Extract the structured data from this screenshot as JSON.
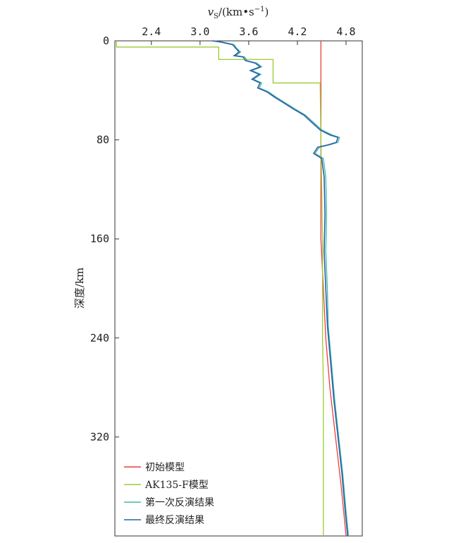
{
  "chart_data": {
    "type": "line",
    "title": "",
    "xlabel_var": "v",
    "xlabel_sub": "S",
    "xlabel_unit": "/(km•s",
    "xlabel_sup": "−1",
    "xlabel_close": ")",
    "ylabel": "深度/km",
    "xlim": [
      1.95,
      5.0
    ],
    "ylim": [
      0,
      400
    ],
    "y_inverted": true,
    "x_ticks": [
      2.4,
      3.0,
      3.6,
      4.2,
      4.8
    ],
    "x_tick_labels": [
      "2.4",
      "3.0",
      "3.6",
      "4.2",
      "4.8"
    ],
    "y_ticks": [
      0,
      80,
      160,
      240,
      320
    ],
    "y_tick_labels": [
      "0",
      "80",
      "160",
      "240",
      "320"
    ],
    "legend_position": "bottom-left",
    "series": [
      {
        "name": "初始模型",
        "color": "#e8403b",
        "points": [
          [
            4.49,
            0
          ],
          [
            4.49,
            40
          ],
          [
            4.49,
            80
          ],
          [
            4.49,
            120
          ],
          [
            4.49,
            160
          ],
          [
            4.52,
            200
          ],
          [
            4.55,
            240
          ],
          [
            4.6,
            280
          ],
          [
            4.67,
            320
          ],
          [
            4.74,
            360
          ],
          [
            4.8,
            400
          ]
        ]
      },
      {
        "name": "AK135-F模型",
        "color": "#9acd32",
        "points": [
          [
            1.97,
            0
          ],
          [
            1.97,
            5
          ],
          [
            3.23,
            5
          ],
          [
            3.23,
            15
          ],
          [
            3.9,
            15
          ],
          [
            3.9,
            34
          ],
          [
            4.48,
            34
          ],
          [
            4.49,
            80
          ],
          [
            4.5,
            120
          ],
          [
            4.51,
            160
          ],
          [
            4.51,
            200
          ],
          [
            4.51,
            240
          ],
          [
            4.52,
            280
          ],
          [
            4.52,
            320
          ],
          [
            4.52,
            360
          ],
          [
            4.52,
            400
          ]
        ]
      },
      {
        "name": "第一次反演结果",
        "color": "#3fb8a6",
        "points": [
          [
            3.18,
            0
          ],
          [
            3.28,
            1
          ],
          [
            3.42,
            3
          ],
          [
            3.45,
            6
          ],
          [
            3.5,
            9
          ],
          [
            3.44,
            12
          ],
          [
            3.55,
            13
          ],
          [
            3.58,
            16
          ],
          [
            3.7,
            18
          ],
          [
            3.76,
            21
          ],
          [
            3.64,
            24
          ],
          [
            3.75,
            27
          ],
          [
            3.66,
            31
          ],
          [
            3.76,
            34
          ],
          [
            3.73,
            38
          ],
          [
            3.84,
            41
          ],
          [
            3.95,
            46
          ],
          [
            4.05,
            50
          ],
          [
            4.17,
            55
          ],
          [
            4.3,
            60
          ],
          [
            4.4,
            66
          ],
          [
            4.5,
            72
          ],
          [
            4.63,
            76
          ],
          [
            4.72,
            78
          ],
          [
            4.7,
            82
          ],
          [
            4.6,
            84
          ],
          [
            4.47,
            86
          ],
          [
            4.42,
            91
          ],
          [
            4.52,
            95
          ],
          [
            4.55,
            110
          ],
          [
            4.56,
            140
          ],
          [
            4.55,
            170
          ],
          [
            4.57,
            200
          ],
          [
            4.58,
            230
          ],
          [
            4.62,
            260
          ],
          [
            4.66,
            290
          ],
          [
            4.71,
            320
          ],
          [
            4.76,
            350
          ],
          [
            4.8,
            380
          ],
          [
            4.83,
            400
          ]
        ]
      },
      {
        "name": "最终反演结果",
        "color": "#2b5ea8",
        "points": [
          [
            3.15,
            0
          ],
          [
            3.26,
            1
          ],
          [
            3.4,
            3
          ],
          [
            3.44,
            6
          ],
          [
            3.48,
            9
          ],
          [
            3.42,
            12
          ],
          [
            3.53,
            13
          ],
          [
            3.56,
            16
          ],
          [
            3.68,
            18
          ],
          [
            3.74,
            21
          ],
          [
            3.62,
            24
          ],
          [
            3.73,
            27
          ],
          [
            3.64,
            31
          ],
          [
            3.74,
            34
          ],
          [
            3.71,
            38
          ],
          [
            3.82,
            41
          ],
          [
            3.93,
            46
          ],
          [
            4.03,
            50
          ],
          [
            4.15,
            55
          ],
          [
            4.28,
            60
          ],
          [
            4.38,
            66
          ],
          [
            4.48,
            72
          ],
          [
            4.6,
            76
          ],
          [
            4.7,
            78
          ],
          [
            4.68,
            82
          ],
          [
            4.58,
            84
          ],
          [
            4.45,
            86
          ],
          [
            4.4,
            91
          ],
          [
            4.5,
            95
          ],
          [
            4.53,
            110
          ],
          [
            4.54,
            140
          ],
          [
            4.53,
            170
          ],
          [
            4.55,
            200
          ],
          [
            4.57,
            230
          ],
          [
            4.61,
            260
          ],
          [
            4.65,
            290
          ],
          [
            4.7,
            320
          ],
          [
            4.75,
            350
          ],
          [
            4.79,
            380
          ],
          [
            4.82,
            400
          ]
        ]
      }
    ]
  }
}
